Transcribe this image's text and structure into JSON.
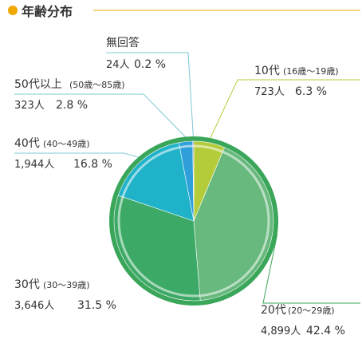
{
  "header": {
    "title": "年齢分布"
  },
  "colors": {
    "header_dot": "#f0a800",
    "header_line": "#f0a800",
    "leader_line": "#7fc8d6",
    "rim": "#3aa65a",
    "slice_stroke": "#ffffff"
  },
  "chart_data": {
    "type": "pie",
    "title": "年齢分布",
    "start_angle_deg": 0,
    "direction": "clockwise",
    "slices": [
      {
        "label": "10代",
        "range": "(16歳〜19歳)",
        "count": "723人",
        "percent": 6.3,
        "percent_label": "6.3 %",
        "color": "#b5cc3a"
      },
      {
        "label": "20代",
        "range": "(20〜29歳)",
        "count": "4,899人",
        "percent": 42.4,
        "percent_label": "42.4 %",
        "color": "#67b97d"
      },
      {
        "label": "30代",
        "range": "(30〜39歳)",
        "count": "3,646人",
        "percent": 31.5,
        "percent_label": "31.5 %",
        "color": "#3caa66"
      },
      {
        "label": "40代",
        "range": "(40〜49歳)",
        "count": "1,944人",
        "percent": 16.8,
        "percent_label": "16.8 %",
        "color": "#1fb2c9"
      },
      {
        "label": "50代以上",
        "range": "(50歳〜85歳)",
        "count": "323人",
        "percent": 2.8,
        "percent_label": "2.8 %",
        "color": "#2e9fd9"
      },
      {
        "label": "無回答",
        "range": "",
        "count": "24人",
        "percent": 0.2,
        "percent_label": "0.2 %",
        "color": "#8a8a8a"
      }
    ]
  }
}
